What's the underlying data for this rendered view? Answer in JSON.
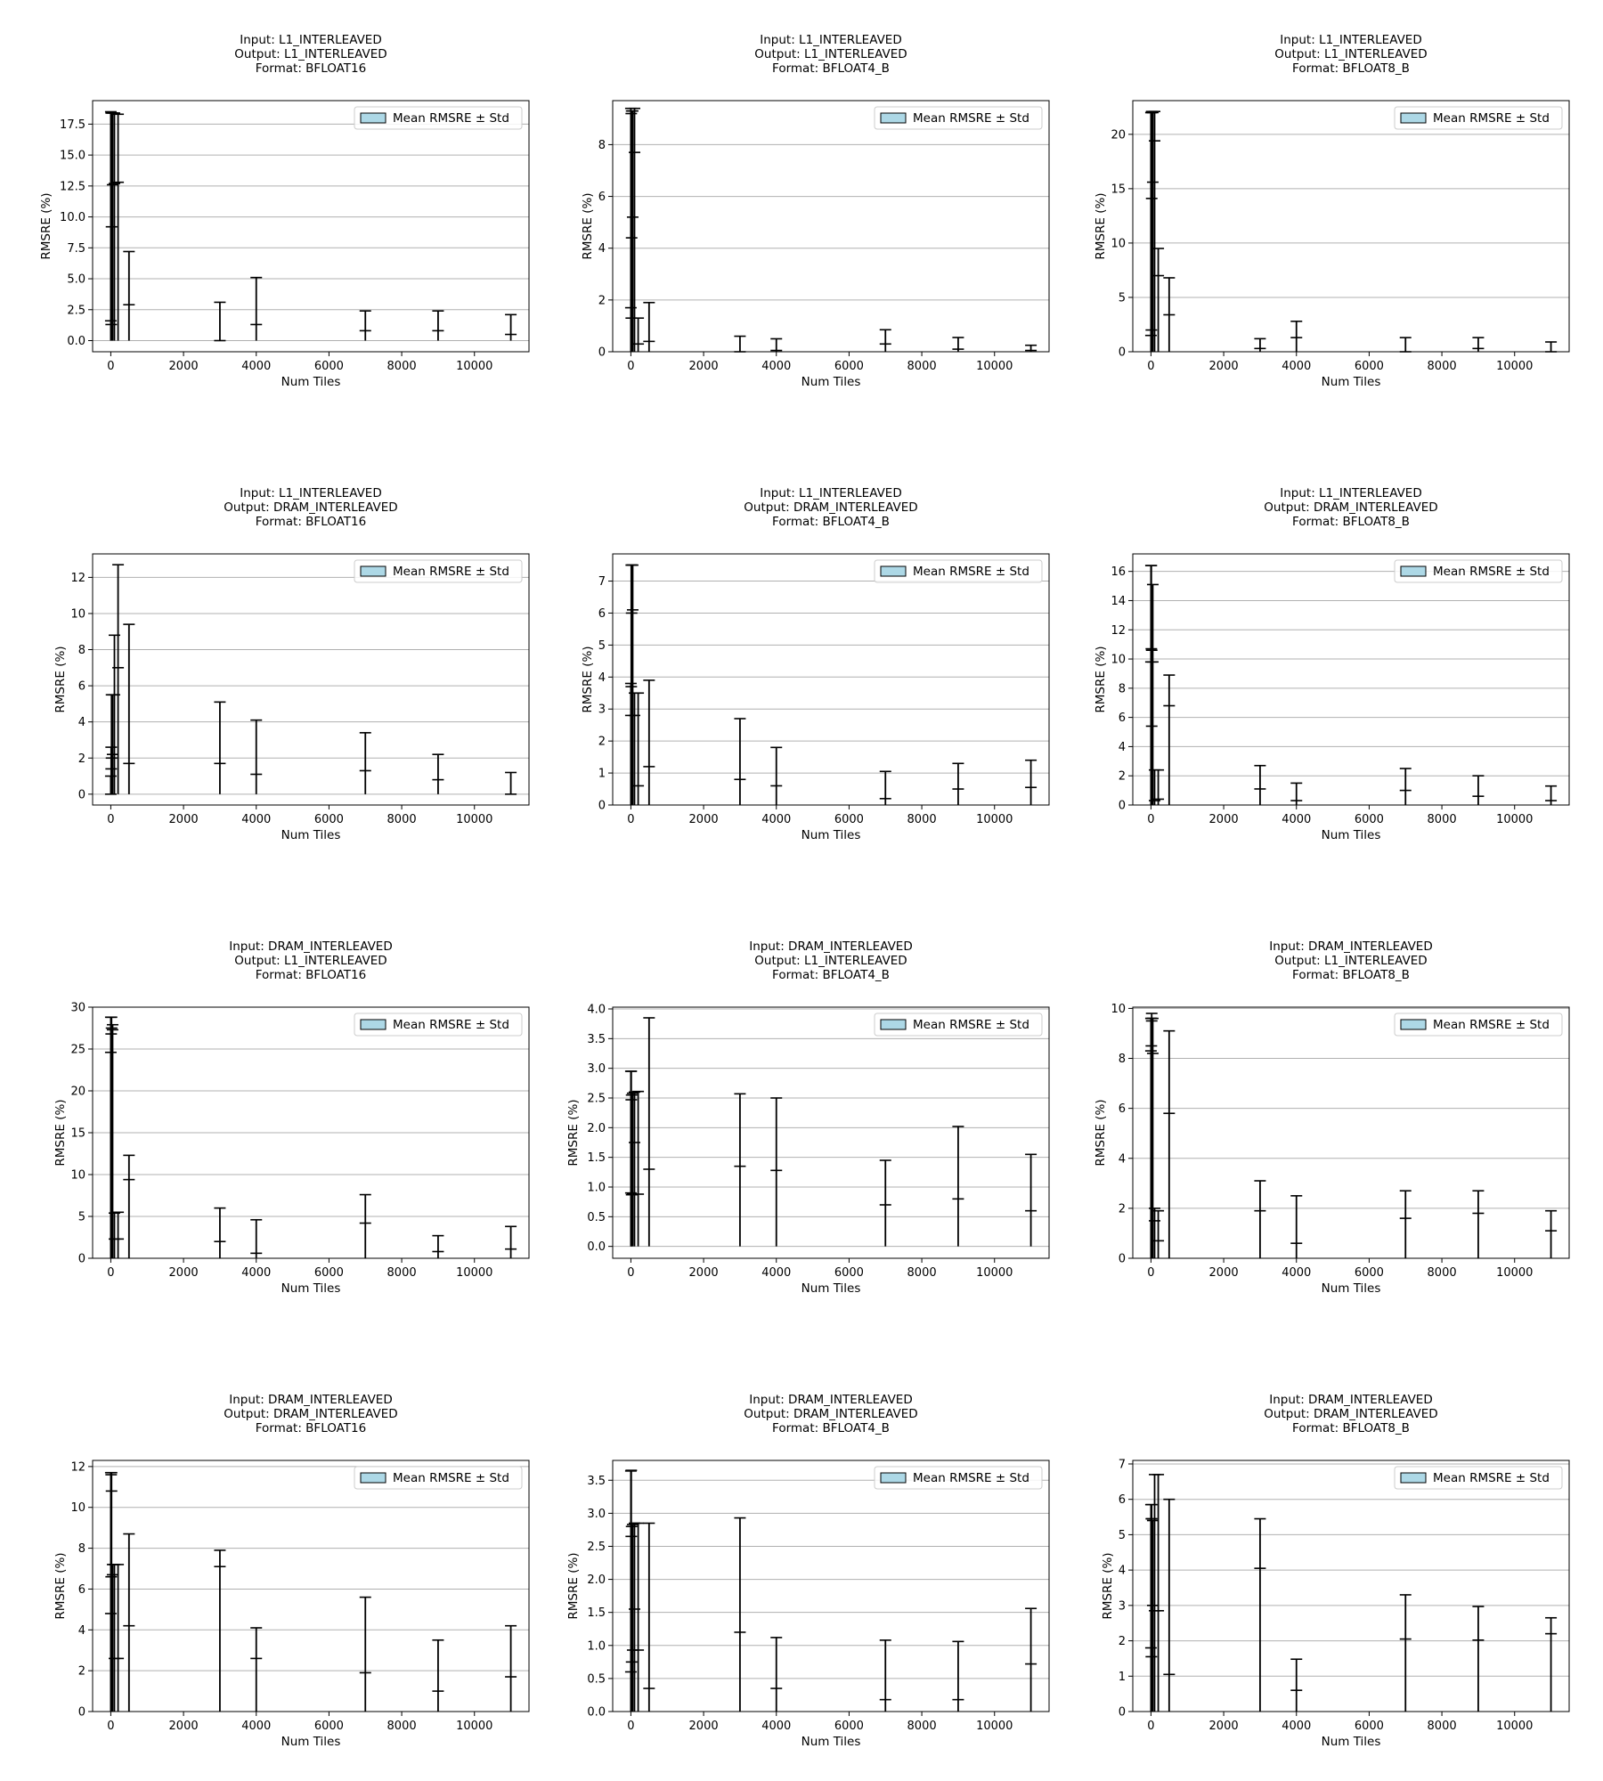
{
  "chart_data": [
    {
      "type": "bar",
      "title": [
        "Input: L1_INTERLEAVED",
        "Output: L1_INTERLEAVED",
        "Format: BFLOAT16"
      ],
      "xlabel": "Num Tiles",
      "ylabel": "RMSRE (%)",
      "legend": "Mean RMSRE ± Std",
      "legend_placement": "top-right",
      "grid": "y",
      "xlim": [
        -500,
        11500
      ],
      "ylim": [
        -0.9,
        19.4
      ],
      "xticks": [
        0,
        2000,
        4000,
        6000,
        8000,
        10000
      ],
      "yticks": [
        0.0,
        2.5,
        5.0,
        7.5,
        10.0,
        12.5,
        15.0,
        17.5
      ],
      "ytick_decimals": 1,
      "x": [
        0,
        10,
        20,
        50,
        100,
        200,
        500,
        3000,
        4000,
        7000,
        9000,
        11000
      ],
      "means": [
        1.6,
        1.3,
        9.2,
        12.6,
        12.7,
        12.8,
        2.9,
        0.0,
        1.3,
        0.8,
        0.8,
        0.5
      ],
      "stds": [
        16.9,
        17.1,
        9.2,
        5.8,
        5.7,
        5.5,
        4.3,
        3.1,
        3.8,
        1.6,
        1.6,
        1.6
      ]
    },
    {
      "type": "bar",
      "title": [
        "Input: L1_INTERLEAVED",
        "Output: L1_INTERLEAVED",
        "Format: BFLOAT4_B"
      ],
      "xlabel": "Num Tiles",
      "ylabel": "RMSRE (%)",
      "legend": "Mean RMSRE ± Std",
      "legend_placement": "top-right",
      "grid": "y",
      "xlim": [
        -500,
        11500
      ],
      "ylim": [
        0,
        9.7
      ],
      "xticks": [
        0,
        2000,
        4000,
        6000,
        8000,
        10000
      ],
      "yticks": [
        0,
        2,
        4,
        6,
        8
      ],
      "ytick_decimals": 0,
      "x": [
        0,
        10,
        20,
        50,
        100,
        200,
        500,
        3000,
        4000,
        7000,
        9000,
        11000
      ],
      "means": [
        1.7,
        1.3,
        4.4,
        5.2,
        7.7,
        0.3,
        0.4,
        0.0,
        0.05,
        0.3,
        0.1,
        0.05
      ],
      "stds": [
        7.7,
        7.9,
        4.9,
        4.1,
        1.7,
        1.0,
        1.5,
        0.6,
        0.45,
        0.55,
        0.45,
        0.2
      ]
    },
    {
      "type": "bar",
      "title": [
        "Input: L1_INTERLEAVED",
        "Output: L1_INTERLEAVED",
        "Format: BFLOAT8_B"
      ],
      "xlabel": "Num Tiles",
      "ylabel": "RMSRE (%)",
      "legend": "Mean RMSRE ± Std",
      "legend_placement": "top-right",
      "grid": "y",
      "xlim": [
        -500,
        11500
      ],
      "ylim": [
        0,
        23.1
      ],
      "xticks": [
        0,
        2000,
        4000,
        6000,
        8000,
        10000
      ],
      "yticks": [
        0,
        5,
        10,
        15,
        20
      ],
      "ytick_decimals": 0,
      "x": [
        0,
        10,
        20,
        50,
        100,
        200,
        500,
        3000,
        4000,
        7000,
        9000,
        11000
      ],
      "means": [
        1.5,
        2.0,
        14.1,
        15.6,
        19.4,
        7.0,
        3.4,
        0.3,
        1.3,
        0.0,
        0.3,
        0.0
      ],
      "stds": [
        20.5,
        20.0,
        8.0,
        6.4,
        2.7,
        2.5,
        3.4,
        0.9,
        1.5,
        1.3,
        1.0,
        0.9
      ]
    },
    {
      "type": "bar",
      "title": [
        "Input: L1_INTERLEAVED",
        "Output: DRAM_INTERLEAVED",
        "Format: BFLOAT16"
      ],
      "xlabel": "Num Tiles",
      "ylabel": "RMSRE (%)",
      "legend": "Mean RMSRE ± Std",
      "legend_placement": "top-right",
      "grid": "y",
      "xlim": [
        -500,
        11500
      ],
      "ylim": [
        -0.6,
        13.3
      ],
      "xticks": [
        0,
        2000,
        4000,
        6000,
        8000,
        10000
      ],
      "yticks": [
        0,
        2,
        4,
        6,
        8,
        10,
        12
      ],
      "ytick_decimals": 0,
      "x": [
        0,
        10,
        20,
        50,
        100,
        200,
        500,
        3000,
        4000,
        7000,
        9000,
        11000
      ],
      "means": [
        0.0,
        1.4,
        2.0,
        2.2,
        5.5,
        7.0,
        1.7,
        1.7,
        1.1,
        1.3,
        0.8,
        0.0
      ],
      "stds": [
        1.0,
        1.2,
        3.5,
        3.3,
        3.3,
        5.7,
        7.7,
        3.4,
        3.0,
        2.1,
        1.4,
        1.2
      ]
    },
    {
      "type": "bar",
      "title": [
        "Input: L1_INTERLEAVED",
        "Output: DRAM_INTERLEAVED",
        "Format: BFLOAT4_B"
      ],
      "xlabel": "Num Tiles",
      "ylabel": "RMSRE (%)",
      "legend": "Mean RMSRE ± Std",
      "legend_placement": "top-right",
      "grid": "y",
      "xlim": [
        -500,
        11500
      ],
      "ylim": [
        0,
        7.85
      ],
      "xticks": [
        0,
        2000,
        4000,
        6000,
        8000,
        10000
      ],
      "yticks": [
        0,
        1,
        2,
        3,
        4,
        5,
        6,
        7
      ],
      "ytick_decimals": 0,
      "x": [
        0,
        10,
        20,
        50,
        100,
        200,
        500,
        3000,
        4000,
        7000,
        9000,
        11000
      ],
      "means": [
        2.8,
        3.7,
        6.0,
        6.1,
        2.8,
        0.6,
        1.2,
        0.8,
        0.6,
        0.2,
        0.5,
        0.55
      ],
      "stds": [
        1.0,
        3.8,
        1.5,
        1.4,
        0.7,
        2.9,
        2.7,
        1.9,
        1.2,
        0.85,
        0.8,
        0.85
      ]
    },
    {
      "type": "bar",
      "title": [
        "Input: L1_INTERLEAVED",
        "Output: DRAM_INTERLEAVED",
        "Format: BFLOAT8_B"
      ],
      "xlabel": "Num Tiles",
      "ylabel": "RMSRE (%)",
      "legend": "Mean RMSRE ± Std",
      "legend_placement": "top-right",
      "grid": "y",
      "xlim": [
        -500,
        11500
      ],
      "ylim": [
        0,
        17.2
      ],
      "xticks": [
        0,
        2000,
        4000,
        6000,
        8000,
        10000
      ],
      "yticks": [
        0,
        2,
        4,
        6,
        8,
        10,
        12,
        14,
        16
      ],
      "ytick_decimals": 0,
      "x": [
        0,
        10,
        20,
        50,
        100,
        200,
        500,
        3000,
        4000,
        7000,
        9000,
        11000
      ],
      "means": [
        9.8,
        10.7,
        5.4,
        9.8,
        0.3,
        0.4,
        6.8,
        1.1,
        0.3,
        1.0,
        0.6,
        0.3
      ],
      "stds": [
        6.6,
        5.7,
        5.2,
        5.3,
        2.1,
        2.0,
        2.1,
        1.6,
        1.2,
        1.5,
        1.4,
        1.0
      ]
    },
    {
      "type": "bar",
      "title": [
        "Input: DRAM_INTERLEAVED",
        "Output: L1_INTERLEAVED",
        "Format: BFLOAT16"
      ],
      "xlabel": "Num Tiles",
      "ylabel": "RMSRE (%)",
      "legend": "Mean RMSRE ± Std",
      "legend_placement": "top-right",
      "grid": "y",
      "xlim": [
        -500,
        11500
      ],
      "ylim": [
        0,
        30
      ],
      "xticks": [
        0,
        2000,
        4000,
        6000,
        8000,
        10000
      ],
      "yticks": [
        0,
        5,
        10,
        15,
        20,
        25,
        30
      ],
      "ytick_decimals": 0,
      "x": [
        0,
        10,
        20,
        50,
        100,
        200,
        500,
        3000,
        4000,
        7000,
        9000,
        11000
      ],
      "means": [
        24.6,
        26.8,
        27.5,
        27.3,
        2.3,
        2.3,
        9.4,
        2.0,
        0.6,
        4.2,
        0.8,
        1.1
      ],
      "stds": [
        4.2,
        2.0,
        1.3,
        0.6,
        3.1,
        3.2,
        2.9,
        4.0,
        4.0,
        3.4,
        1.9,
        2.7
      ]
    },
    {
      "type": "bar",
      "title": [
        "Input: DRAM_INTERLEAVED",
        "Output: L1_INTERLEAVED",
        "Format: BFLOAT4_B"
      ],
      "xlabel": "Num Tiles",
      "ylabel": "RMSRE (%)",
      "legend": "Mean RMSRE ± Std",
      "legend_placement": "top-right",
      "grid": "y",
      "xlim": [
        -500,
        11500
      ],
      "ylim": [
        -0.2,
        4.03
      ],
      "xticks": [
        0,
        2000,
        4000,
        6000,
        8000,
        10000
      ],
      "yticks": [
        0.0,
        0.5,
        1.0,
        1.5,
        2.0,
        2.5,
        3.0,
        3.5,
        4.0
      ],
      "ytick_decimals": 1,
      "x": [
        0,
        10,
        20,
        50,
        100,
        200,
        500,
        3000,
        4000,
        7000,
        9000,
        11000
      ],
      "means": [
        0.9,
        2.47,
        0.87,
        0.88,
        1.75,
        0.88,
        1.3,
        1.35,
        1.28,
        0.7,
        0.8,
        0.6
      ],
      "stds": [
        2.05,
        0.48,
        1.68,
        1.7,
        0.85,
        1.73,
        2.55,
        1.22,
        1.22,
        0.75,
        1.22,
        0.95
      ]
    },
    {
      "type": "bar",
      "title": [
        "Input: DRAM_INTERLEAVED",
        "Output: L1_INTERLEAVED",
        "Format: BFLOAT8_B"
      ],
      "xlabel": "Num Tiles",
      "ylabel": "RMSRE (%)",
      "legend": "Mean RMSRE ± Std",
      "legend_placement": "top-right",
      "grid": "y",
      "xlim": [
        -500,
        11500
      ],
      "ylim": [
        0,
        10.05
      ],
      "xticks": [
        0,
        2000,
        4000,
        6000,
        8000,
        10000
      ],
      "yticks": [
        0,
        2,
        4,
        6,
        8,
        10
      ],
      "ytick_decimals": 0,
      "x": [
        0,
        10,
        20,
        50,
        100,
        200,
        500,
        3000,
        4000,
        7000,
        9000,
        11000
      ],
      "means": [
        8.3,
        8.5,
        9.5,
        8.2,
        1.5,
        0.7,
        5.8,
        1.9,
        0.6,
        1.6,
        1.8,
        1.1
      ],
      "stds": [
        1.3,
        1.1,
        0.3,
        1.4,
        0.5,
        1.2,
        3.3,
        1.2,
        1.9,
        1.1,
        0.9,
        0.8
      ]
    },
    {
      "type": "bar",
      "title": [
        "Input: DRAM_INTERLEAVED",
        "Output: DRAM_INTERLEAVED",
        "Format: BFLOAT16"
      ],
      "xlabel": "Num Tiles",
      "ylabel": "RMSRE (%)",
      "legend": "Mean RMSRE ± Std",
      "legend_placement": "top-right",
      "grid": "y",
      "xlim": [
        -500,
        11500
      ],
      "ylim": [
        0,
        12.3
      ],
      "xticks": [
        0,
        2000,
        4000,
        6000,
        8000,
        10000
      ],
      "yticks": [
        0,
        2,
        4,
        6,
        8,
        10,
        12
      ],
      "ytick_decimals": 0,
      "x": [
        0,
        10,
        20,
        50,
        100,
        200,
        500,
        3000,
        4000,
        7000,
        9000,
        11000
      ],
      "means": [
        4.8,
        6.6,
        10.8,
        6.7,
        2.6,
        2.6,
        4.2,
        7.1,
        2.6,
        1.9,
        1.0,
        1.7
      ],
      "stds": [
        6.9,
        5.0,
        0.9,
        0.5,
        4.6,
        4.6,
        4.5,
        0.8,
        1.5,
        3.7,
        2.5,
        2.5
      ]
    },
    {
      "type": "bar",
      "title": [
        "Input: DRAM_INTERLEAVED",
        "Output: DRAM_INTERLEAVED",
        "Format: BFLOAT4_B"
      ],
      "xlabel": "Num Tiles",
      "ylabel": "RMSRE (%)",
      "legend": "Mean RMSRE ± Std",
      "legend_placement": "top-right",
      "grid": "y",
      "xlim": [
        -500,
        11500
      ],
      "ylim": [
        0,
        3.8
      ],
      "xticks": [
        0,
        2000,
        4000,
        6000,
        8000,
        10000
      ],
      "yticks": [
        0.0,
        0.5,
        1.0,
        1.5,
        2.0,
        2.5,
        3.0,
        3.5
      ],
      "ytick_decimals": 1,
      "x": [
        0,
        10,
        20,
        50,
        100,
        200,
        500,
        3000,
        4000,
        7000,
        9000,
        11000
      ],
      "means": [
        0.6,
        2.65,
        0.75,
        0.93,
        1.55,
        0.93,
        0.35,
        1.2,
        0.35,
        0.18,
        0.18,
        0.72
      ],
      "stds": [
        3.04,
        1.0,
        2.05,
        1.9,
        1.3,
        1.92,
        2.5,
        1.73,
        0.77,
        0.9,
        0.88,
        0.84
      ]
    },
    {
      "type": "bar",
      "title": [
        "Input: DRAM_INTERLEAVED",
        "Output: DRAM_INTERLEAVED",
        "Format: BFLOAT8_B"
      ],
      "xlabel": "Num Tiles",
      "ylabel": "RMSRE (%)",
      "legend": "Mean RMSRE ± Std",
      "legend_placement": "top-right",
      "grid": "y",
      "xlim": [
        -500,
        11500
      ],
      "ylim": [
        0,
        7.1
      ],
      "xticks": [
        0,
        2000,
        4000,
        6000,
        8000,
        10000
      ],
      "yticks": [
        0,
        1,
        2,
        3,
        4,
        5,
        6,
        7
      ],
      "ytick_decimals": 0,
      "x": [
        0,
        10,
        20,
        50,
        100,
        200,
        500,
        3000,
        4000,
        7000,
        9000,
        11000
      ],
      "means": [
        1.8,
        1.55,
        5.45,
        3.0,
        2.85,
        2.85,
        1.05,
        4.05,
        0.6,
        2.05,
        2.02,
        2.2
      ],
      "stds": [
        4.05,
        3.9,
        0.4,
        2.4,
        3.85,
        3.85,
        4.95,
        1.4,
        0.88,
        1.25,
        0.95,
        0.45
      ]
    }
  ]
}
